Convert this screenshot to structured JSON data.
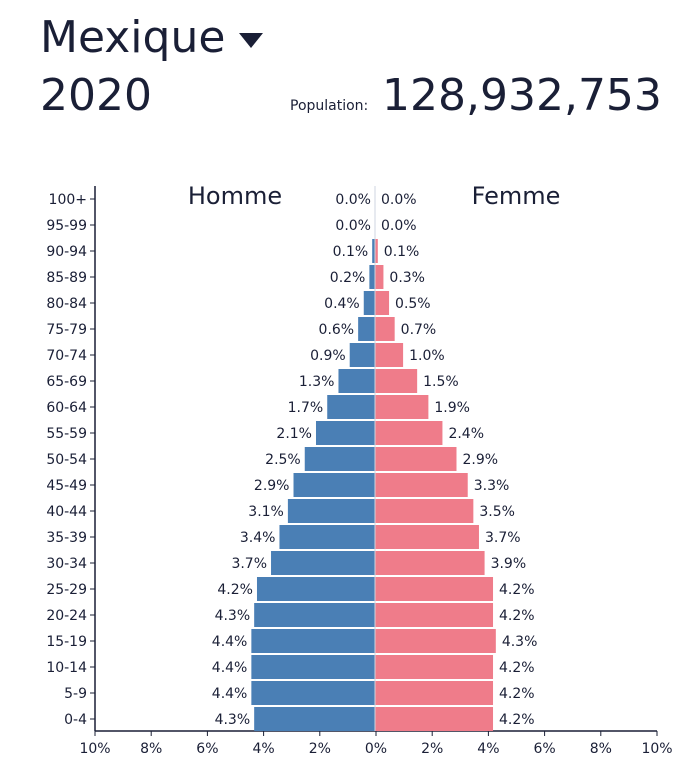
{
  "header": {
    "country": "Mexique",
    "year": "2020",
    "population_label": "Population:",
    "population_value": "128,932,753"
  },
  "colors": {
    "male": "#4a7fb5",
    "female": "#ef7c8a",
    "axis": "#1a1f36"
  },
  "chart_data": {
    "type": "bar",
    "orientation": "horizontal",
    "categories": [
      "100+",
      "95-99",
      "90-94",
      "85-89",
      "80-84",
      "75-79",
      "70-74",
      "65-69",
      "60-64",
      "55-59",
      "50-54",
      "45-49",
      "40-44",
      "35-39",
      "30-34",
      "25-29",
      "20-24",
      "15-19",
      "10-14",
      "5-9",
      "0-4"
    ],
    "series": [
      {
        "name": "Homme",
        "values": [
          0.0,
          0.0,
          0.1,
          0.2,
          0.4,
          0.6,
          0.9,
          1.3,
          1.7,
          2.1,
          2.5,
          2.9,
          3.1,
          3.4,
          3.7,
          4.2,
          4.3,
          4.4,
          4.4,
          4.4,
          4.3
        ]
      },
      {
        "name": "Femme",
        "values": [
          0.0,
          0.0,
          0.1,
          0.3,
          0.5,
          0.7,
          1.0,
          1.5,
          1.9,
          2.4,
          2.9,
          3.3,
          3.5,
          3.7,
          3.9,
          4.2,
          4.2,
          4.3,
          4.2,
          4.2,
          4.2
        ]
      }
    ],
    "xticks": [
      "10%",
      "8%",
      "6%",
      "4%",
      "2%",
      "0%",
      "2%",
      "4%",
      "6%",
      "8%",
      "10%"
    ],
    "xlim": [
      -10,
      10
    ],
    "unit": "%",
    "legend": "top"
  }
}
